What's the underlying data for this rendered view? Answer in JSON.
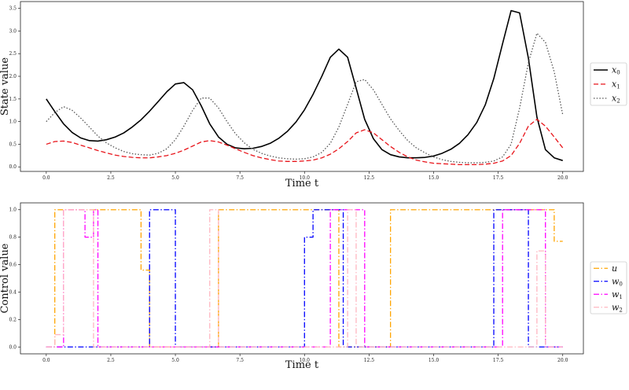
{
  "chart_data": [
    {
      "type": "line",
      "xlabel": "Time t",
      "ylabel": "State value",
      "xlim": [
        -1.0,
        20.8
      ],
      "ylim": [
        -0.1,
        3.65
      ],
      "xticks": [
        0.0,
        2.5,
        5.0,
        7.5,
        10.0,
        12.5,
        15.0,
        17.5,
        20.0
      ],
      "yticks": [
        0.0,
        0.5,
        1.0,
        1.5,
        2.0,
        2.5,
        3.0,
        3.5
      ],
      "legend": "center-right",
      "series": [
        {
          "name": "x0",
          "label_main": "x",
          "label_sub": "0",
          "color": "#000000",
          "style": "solid",
          "x": [
            0,
            0.33,
            0.67,
            1.0,
            1.33,
            1.67,
            2.0,
            2.33,
            2.67,
            3.0,
            3.33,
            3.67,
            4.0,
            4.33,
            4.67,
            5.0,
            5.33,
            5.67,
            6.0,
            6.33,
            6.67,
            7.0,
            7.33,
            7.67,
            8.0,
            8.33,
            8.67,
            9.0,
            9.33,
            9.67,
            10.0,
            10.33,
            10.67,
            11.0,
            11.33,
            11.67,
            12.0,
            12.33,
            12.67,
            13.0,
            13.33,
            13.67,
            14.0,
            14.33,
            14.67,
            15.0,
            15.33,
            15.67,
            16.0,
            16.33,
            16.67,
            17.0,
            17.33,
            17.67,
            18.0,
            18.33,
            18.67,
            19.0,
            19.33,
            19.67,
            20.0
          ],
          "y": [
            1.5,
            1.22,
            0.95,
            0.76,
            0.64,
            0.58,
            0.57,
            0.6,
            0.66,
            0.75,
            0.88,
            1.04,
            1.23,
            1.44,
            1.66,
            1.83,
            1.86,
            1.7,
            1.35,
            0.95,
            0.66,
            0.5,
            0.42,
            0.4,
            0.41,
            0.45,
            0.52,
            0.63,
            0.78,
            0.99,
            1.26,
            1.6,
            2.0,
            2.42,
            2.6,
            2.42,
            1.74,
            1.05,
            0.62,
            0.38,
            0.27,
            0.22,
            0.2,
            0.2,
            0.21,
            0.24,
            0.3,
            0.39,
            0.52,
            0.71,
            0.98,
            1.37,
            1.95,
            2.72,
            3.45,
            3.4,
            2.4,
            1.1,
            0.38,
            0.2,
            0.14
          ]
        },
        {
          "name": "x1",
          "label_main": "x",
          "label_sub": "1",
          "color": "#e8141a",
          "style": "dashed",
          "x": [
            0,
            0.33,
            0.67,
            1.0,
            1.33,
            1.67,
            2.0,
            2.33,
            2.67,
            3.0,
            3.33,
            3.67,
            4.0,
            4.33,
            4.67,
            5.0,
            5.33,
            5.67,
            6.0,
            6.33,
            6.67,
            7.0,
            7.33,
            7.67,
            8.0,
            8.33,
            8.67,
            9.0,
            9.33,
            9.67,
            10.0,
            10.33,
            10.67,
            11.0,
            11.33,
            11.67,
            12.0,
            12.33,
            12.67,
            13.0,
            13.33,
            13.67,
            14.0,
            14.33,
            14.67,
            15.0,
            15.33,
            15.67,
            16.0,
            16.33,
            16.67,
            17.0,
            17.33,
            17.67,
            18.0,
            18.33,
            18.67,
            19.0,
            19.33,
            19.67,
            20.0
          ],
          "y": [
            0.5,
            0.56,
            0.57,
            0.54,
            0.48,
            0.42,
            0.36,
            0.31,
            0.26,
            0.23,
            0.21,
            0.2,
            0.2,
            0.22,
            0.25,
            0.3,
            0.37,
            0.46,
            0.55,
            0.58,
            0.55,
            0.48,
            0.4,
            0.32,
            0.25,
            0.2,
            0.16,
            0.13,
            0.12,
            0.12,
            0.13,
            0.15,
            0.2,
            0.28,
            0.4,
            0.56,
            0.75,
            0.82,
            0.75,
            0.6,
            0.45,
            0.32,
            0.22,
            0.15,
            0.11,
            0.08,
            0.07,
            0.06,
            0.05,
            0.05,
            0.05,
            0.06,
            0.08,
            0.13,
            0.25,
            0.52,
            0.9,
            1.05,
            0.9,
            0.66,
            0.42
          ]
        },
        {
          "name": "x2",
          "label_main": "x",
          "label_sub": "2",
          "color": "#555555",
          "style": "dotted",
          "x": [
            0,
            0.33,
            0.67,
            1.0,
            1.33,
            1.67,
            2.0,
            2.33,
            2.67,
            3.0,
            3.33,
            3.67,
            4.0,
            4.33,
            4.67,
            5.0,
            5.33,
            5.67,
            6.0,
            6.33,
            6.67,
            7.0,
            7.33,
            7.67,
            8.0,
            8.33,
            8.67,
            9.0,
            9.33,
            9.67,
            10.0,
            10.33,
            10.67,
            11.0,
            11.33,
            11.67,
            12.0,
            12.33,
            12.67,
            13.0,
            13.33,
            13.67,
            14.0,
            14.33,
            14.67,
            15.0,
            15.33,
            15.67,
            16.0,
            16.33,
            16.67,
            17.0,
            17.33,
            17.67,
            18.0,
            18.33,
            18.67,
            19.0,
            19.33,
            19.67,
            20.0
          ],
          "y": [
            1.0,
            1.2,
            1.33,
            1.25,
            1.08,
            0.88,
            0.68,
            0.53,
            0.42,
            0.34,
            0.29,
            0.27,
            0.26,
            0.3,
            0.4,
            0.6,
            0.9,
            1.25,
            1.52,
            1.52,
            1.3,
            1.0,
            0.73,
            0.53,
            0.39,
            0.3,
            0.24,
            0.2,
            0.18,
            0.17,
            0.18,
            0.22,
            0.32,
            0.52,
            0.88,
            1.38,
            1.88,
            1.93,
            1.7,
            1.38,
            1.06,
            0.8,
            0.58,
            0.42,
            0.31,
            0.22,
            0.16,
            0.12,
            0.1,
            0.09,
            0.09,
            0.1,
            0.13,
            0.22,
            0.5,
            1.3,
            2.3,
            2.95,
            2.75,
            2.1,
            1.15
          ]
        }
      ]
    },
    {
      "type": "line",
      "xlabel": "Time t",
      "ylabel": "Control value",
      "xlim": [
        -1.0,
        20.8
      ],
      "ylim": [
        -0.05,
        1.05
      ],
      "xticks": [
        0.0,
        2.5,
        5.0,
        7.5,
        10.0,
        12.5,
        15.0,
        17.5,
        20.0
      ],
      "yticks": [
        0.0,
        0.2,
        0.4,
        0.6,
        0.8,
        1.0
      ],
      "legend": "center-right",
      "series": [
        {
          "name": "u",
          "label_main": "u",
          "label_sub": "",
          "color": "#ffa500",
          "style": "dashdot",
          "x": [
            0,
            0.33,
            0.33,
            3.67,
            3.67,
            4.0,
            4.0,
            6.67,
            6.67,
            11.33,
            11.33,
            13.33,
            13.33,
            19.67,
            19.67,
            20.0
          ],
          "y": [
            0.0,
            0.0,
            1.0,
            1.0,
            0.56,
            0.56,
            0.0,
            0.0,
            1.0,
            1.0,
            0.0,
            0.0,
            1.0,
            1.0,
            0.77,
            0.77
          ]
        },
        {
          "name": "w0",
          "label_main": "w",
          "label_sub": "0",
          "color": "#0000ff",
          "style": "dashdot",
          "x": [
            0,
            4.0,
            4.0,
            5.0,
            5.0,
            10.0,
            10.0,
            10.33,
            10.33,
            11.5,
            11.5,
            17.33,
            17.33,
            18.67,
            18.67,
            20.0
          ],
          "y": [
            0.0,
            0.0,
            1.0,
            1.0,
            0.0,
            0.0,
            0.8,
            0.8,
            1.0,
            1.0,
            0.0,
            0.0,
            1.0,
            1.0,
            0.0,
            0.0
          ]
        },
        {
          "name": "w1",
          "label_main": "w",
          "label_sub": "1",
          "color": "#ff00ff",
          "style": "dashdot",
          "x": [
            0,
            0.67,
            0.67,
            1.5,
            1.5,
            1.83,
            1.83,
            2.0,
            2.0,
            11.0,
            11.0,
            12.33,
            12.33,
            17.67,
            17.67,
            19.33,
            19.33,
            20.0
          ],
          "y": [
            0.0,
            0.0,
            1.0,
            1.0,
            0.8,
            0.8,
            1.0,
            1.0,
            0.0,
            0.0,
            1.0,
            1.0,
            0.0,
            0.0,
            1.0,
            1.0,
            0.0,
            0.0
          ]
        },
        {
          "name": "w2",
          "label_main": "w",
          "label_sub": "2",
          "color": "#ffb6c1",
          "style": "dashdot",
          "x": [
            0,
            0.33,
            0.33,
            0.67,
            0.67,
            1.83,
            1.83,
            6.33,
            6.33,
            6.67,
            6.67,
            11.67,
            11.67,
            12.0,
            12.0,
            19.0,
            19.0,
            19.33,
            19.33,
            20.0
          ],
          "y": [
            0.0,
            0.0,
            0.09,
            0.09,
            1.0,
            1.0,
            0.0,
            0.0,
            1.0,
            1.0,
            0.0,
            0.0,
            1.0,
            1.0,
            0.0,
            0.0,
            0.7,
            0.7,
            0.0,
            0.0
          ]
        }
      ]
    }
  ]
}
